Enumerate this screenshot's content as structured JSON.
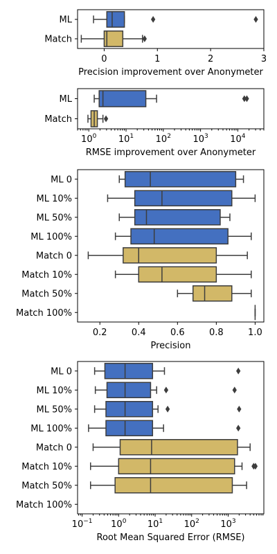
{
  "colors": {
    "ml": "#4470c0",
    "match": "#d2b868",
    "outline": "#3d3d3d"
  },
  "chart_data": [
    {
      "type": "box",
      "xlabel": "Precision improvement over Anonymeter",
      "xscale": "linear",
      "xlim": [
        -0.5,
        3.0
      ],
      "xticks": [
        {
          "v": 0,
          "label": "0"
        },
        {
          "v": 1,
          "label": "1"
        },
        {
          "v": 2,
          "label": "2"
        },
        {
          "v": 3,
          "label": "3"
        }
      ],
      "categories": [
        "ML",
        "Match"
      ],
      "boxes": [
        {
          "label": "ML",
          "group": "ml",
          "whislo": -0.2,
          "q1": 0.05,
          "med": 0.15,
          "q3": 0.38,
          "whishi": 0.38,
          "fliers": [
            0.92,
            2.85
          ]
        },
        {
          "label": "Match",
          "group": "match",
          "whislo": -0.43,
          "q1": 0.0,
          "med": 0.05,
          "q3": 0.35,
          "whishi": 0.72,
          "fliers": [
            0.76
          ]
        }
      ]
    },
    {
      "type": "box",
      "xlabel": "RMSE improvement over Anonymeter",
      "xscale": "log",
      "xlim": [
        0.5,
        50000
      ],
      "xticks": [
        {
          "v": 1,
          "label": "10",
          "exp": "0"
        },
        {
          "v": 10,
          "label": "10",
          "exp": "1"
        },
        {
          "v": 100,
          "label": "10",
          "exp": "2"
        },
        {
          "v": 1000,
          "label": "10",
          "exp": "3"
        },
        {
          "v": 10000,
          "label": "10",
          "exp": "4"
        }
      ],
      "categories": [
        "ML",
        "Match"
      ],
      "boxes": [
        {
          "label": "ML",
          "group": "ml",
          "whislo": 1.4,
          "q1": 1.9,
          "med": 2.4,
          "q3": 34,
          "whishi": 66,
          "fliers": [
            15000,
            17500
          ]
        },
        {
          "label": "Match",
          "group": "match",
          "whislo": 0.95,
          "q1": 1.15,
          "med": 1.4,
          "q3": 1.7,
          "whishi": 2.4,
          "fliers": [
            2.9
          ]
        }
      ]
    },
    {
      "type": "box",
      "xlabel": "Precision",
      "xscale": "linear",
      "xlim": [
        0.085,
        1.045
      ],
      "xticks": [
        {
          "v": 0.2,
          "label": "0.2"
        },
        {
          "v": 0.4,
          "label": "0.4"
        },
        {
          "v": 0.6,
          "label": "0.6"
        },
        {
          "v": 0.8,
          "label": "0.8"
        },
        {
          "v": 1.0,
          "label": "1.0"
        }
      ],
      "categories": [
        "ML 0",
        "ML 10%",
        "ML 50%",
        "ML 100%",
        "Match 0",
        "Match 10%",
        "Match 50%",
        "Match 100%"
      ],
      "boxes": [
        {
          "label": "ML 0",
          "group": "ml",
          "whislo": 0.3,
          "q1": 0.33,
          "med": 0.46,
          "q3": 0.9,
          "whishi": 0.94,
          "fliers": []
        },
        {
          "label": "ML 10%",
          "group": "ml",
          "whislo": 0.24,
          "q1": 0.38,
          "med": 0.52,
          "q3": 0.88,
          "whishi": 1.0,
          "fliers": []
        },
        {
          "label": "ML 50%",
          "group": "ml",
          "whislo": 0.3,
          "q1": 0.38,
          "med": 0.44,
          "q3": 0.82,
          "whishi": 0.87,
          "fliers": []
        },
        {
          "label": "ML 100%",
          "group": "ml",
          "whislo": 0.28,
          "q1": 0.36,
          "med": 0.48,
          "q3": 0.86,
          "whishi": 0.98,
          "fliers": []
        },
        {
          "label": "Match 0",
          "group": "match",
          "whislo": 0.14,
          "q1": 0.32,
          "med": 0.4,
          "q3": 0.8,
          "whishi": 0.96,
          "fliers": []
        },
        {
          "label": "Match 10%",
          "group": "match",
          "whislo": 0.28,
          "q1": 0.4,
          "med": 0.52,
          "q3": 0.8,
          "whishi": 0.98,
          "fliers": []
        },
        {
          "label": "Match 50%",
          "group": "match",
          "whislo": 0.6,
          "q1": 0.68,
          "med": 0.74,
          "q3": 0.88,
          "whishi": 0.98,
          "fliers": []
        },
        {
          "label": "Match 100%",
          "group": "match",
          "whislo": 1.0,
          "q1": 1.0,
          "med": 1.0,
          "q3": 1.0,
          "whishi": 1.0,
          "fliers": []
        }
      ]
    },
    {
      "type": "box",
      "xlabel": "Root Mean Squared Error (RMSE)",
      "xscale": "log",
      "xlim": [
        0.075,
        9500
      ],
      "xticks": [
        {
          "v": 0.1,
          "label": "10",
          "exp": "−1"
        },
        {
          "v": 1,
          "label": "10",
          "exp": "0"
        },
        {
          "v": 10,
          "label": "10",
          "exp": "1"
        },
        {
          "v": 100,
          "label": "10",
          "exp": "2"
        },
        {
          "v": 1000,
          "label": "10",
          "exp": "3"
        }
      ],
      "categories": [
        "ML 0",
        "ML 10%",
        "ML 50%",
        "ML 100%",
        "Match 0",
        "Match 10%",
        "Match 50%",
        "Match 100%"
      ],
      "boxes": [
        {
          "label": "ML 0",
          "group": "ml",
          "whislo": 0.22,
          "q1": 0.42,
          "med": 1.5,
          "q3": 8.5,
          "whishi": 18,
          "fliers": [
            1900
          ]
        },
        {
          "label": "ML 10%",
          "group": "ml",
          "whislo": 0.23,
          "q1": 0.48,
          "med": 1.5,
          "q3": 7.5,
          "whishi": 11,
          "fliers": [
            20,
            1500
          ]
        },
        {
          "label": "ML 50%",
          "group": "ml",
          "whislo": 0.22,
          "q1": 0.45,
          "med": 1.5,
          "q3": 8.5,
          "whishi": 12,
          "fliers": [
            22,
            2000
          ]
        },
        {
          "label": "ML 100%",
          "group": "ml",
          "whislo": 0.15,
          "q1": 0.45,
          "med": 1.5,
          "q3": 8.5,
          "whishi": 17,
          "fliers": [
            1900
          ]
        },
        {
          "label": "Match 0",
          "group": "match",
          "whislo": 0.2,
          "q1": 1.1,
          "med": 8,
          "q3": 1800,
          "whishi": 4000,
          "fliers": []
        },
        {
          "label": "Match 10%",
          "group": "match",
          "whislo": 0.17,
          "q1": 1.0,
          "med": 7.5,
          "q3": 1500,
          "whishi": 2400,
          "fliers": [
            5000,
            5600
          ]
        },
        {
          "label": "Match 50%",
          "group": "match",
          "whislo": 0.17,
          "q1": 0.8,
          "med": 7.5,
          "q3": 1300,
          "whishi": 3200,
          "fliers": []
        },
        {
          "label": "Match 100%",
          "group": "match",
          "whislo": null,
          "q1": null,
          "med": null,
          "q3": null,
          "whishi": null,
          "fliers": []
        }
      ]
    }
  ]
}
